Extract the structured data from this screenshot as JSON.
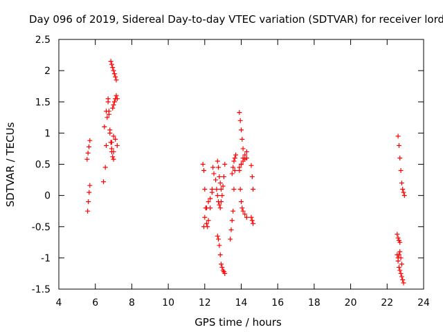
{
  "chart_data": {
    "type": "scatter",
    "title": "Day 096 of 2019, Sidereal Day-to-day VTEC variation (SDTVAR) for receiver lord",
    "xlabel": "GPS time / hours",
    "ylabel": "SDTVAR / TECUs",
    "xlim": [
      4,
      24
    ],
    "ylim": [
      -1.5,
      2.5
    ],
    "x_ticks": [
      4,
      6,
      8,
      10,
      12,
      14,
      16,
      18,
      20,
      22,
      24
    ],
    "x_tick_labels": [
      "4",
      "6",
      "8",
      "10",
      "12",
      "14",
      "16",
      "18",
      "20",
      "22",
      "24"
    ],
    "y_ticks": [
      -1.5,
      -1,
      -0.5,
      0,
      0.5,
      1,
      1.5,
      2,
      2.5
    ],
    "y_tick_labels": [
      "-1.5",
      "-1",
      "-0.5",
      "0",
      "0.5",
      "1",
      "1.5",
      "2",
      "2.5"
    ],
    "marker": "+",
    "grid": false,
    "color": "#ff0000",
    "series": [
      {
        "name": "SDTVAR",
        "tracks": [
          {
            "x": [
              5.55,
              5.6,
              5.65,
              5.7
            ],
            "y": [
              0.58,
              0.68,
              0.78,
              0.88
            ]
          },
          {
            "x": [
              5.58,
              5.62,
              5.66,
              5.7
            ],
            "y": [
              -0.25,
              -0.1,
              0.05,
              0.16
            ]
          },
          {
            "x": [
              6.45,
              6.55,
              6.6,
              6.65,
              6.7,
              6.75,
              6.8,
              6.85,
              6.9,
              6.95,
              7.0
            ],
            "y": [
              0.22,
              0.45,
              0.8,
              1.25,
              1.5,
              1.35,
              1.05,
              0.85,
              0.7,
              0.62,
              0.58
            ]
          },
          {
            "x": [
              6.5,
              6.6,
              6.7,
              6.75,
              6.8,
              6.85,
              6.9,
              7.0
            ],
            "y": [
              1.1,
              1.35,
              1.55,
              1.3,
              1.0,
              0.85,
              0.75,
              0.7
            ]
          },
          {
            "x": [
              6.85,
              6.9,
              6.95,
              7.0,
              7.05,
              7.1,
              7.15
            ],
            "y": [
              2.15,
              2.1,
              2.05,
              2.0,
              1.95,
              1.9,
              1.85
            ]
          },
          {
            "x": [
              6.95,
              7.0,
              7.05,
              7.1,
              7.15,
              7.2
            ],
            "y": [
              1.4,
              1.45,
              1.5,
              1.55,
              1.6,
              1.55
            ]
          },
          {
            "x": [
              6.9,
              7.0,
              7.1,
              7.2
            ],
            "y": [
              0.85,
              0.95,
              0.9,
              0.8
            ]
          },
          {
            "x": [
              11.9,
              11.95,
              12.0,
              12.05,
              12.1,
              12.15,
              12.2,
              12.3,
              12.4,
              12.45
            ],
            "y": [
              0.5,
              0.4,
              0.1,
              -0.2,
              -0.45,
              -0.5,
              -0.4,
              -0.2,
              0.1,
              0.45
            ]
          },
          {
            "x": [
              11.95,
              12.0,
              12.1,
              12.2,
              12.3,
              12.4,
              12.5
            ],
            "y": [
              -0.5,
              -0.35,
              -0.2,
              -0.1,
              -0.05,
              0.05,
              0.35
            ]
          },
          {
            "x": [
              12.6,
              12.65,
              12.7,
              12.75,
              12.8,
              12.85,
              12.9,
              12.95,
              13.0,
              13.05,
              13.1
            ],
            "y": [
              0.25,
              0.1,
              0.0,
              -0.1,
              -0.15,
              -0.2,
              -0.1,
              0.0,
              0.15,
              0.3,
              0.5
            ]
          },
          {
            "x": [
              12.7,
              12.75,
              12.8,
              12.85,
              12.9
            ],
            "y": [
              0.55,
              0.45,
              0.3,
              0.2,
              0.1
            ]
          },
          {
            "x": [
              12.7,
              12.75,
              12.8,
              12.85,
              12.9,
              12.95,
              13.0,
              13.05,
              13.1
            ],
            "y": [
              -0.65,
              -0.7,
              -0.8,
              -0.95,
              -1.1,
              -1.15,
              -1.2,
              -1.22,
              -1.25
            ]
          },
          {
            "x": [
              13.4,
              13.45,
              13.5,
              13.55,
              13.6,
              13.65
            ],
            "y": [
              -0.7,
              -0.55,
              -0.4,
              -0.25,
              0.1,
              0.4
            ]
          },
          {
            "x": [
              13.5,
              13.55,
              13.6,
              13.65,
              13.7
            ],
            "y": [
              0.35,
              0.45,
              0.55,
              0.6,
              0.65
            ]
          },
          {
            "x": [
              13.9,
              13.95,
              14.0,
              14.05,
              14.1
            ],
            "y": [
              1.33,
              1.2,
              1.05,
              0.9,
              0.75
            ]
          },
          {
            "x": [
              13.9,
              14.0,
              14.1,
              14.2,
              14.3
            ],
            "y": [
              0.4,
              0.5,
              0.6,
              0.65,
              0.7
            ]
          },
          {
            "x": [
              13.95,
              14.0,
              14.05,
              14.1,
              14.2,
              14.3
            ],
            "y": [
              0.1,
              -0.1,
              -0.2,
              -0.25,
              -0.3,
              -0.35
            ]
          },
          {
            "x": [
              13.9,
              14.0,
              14.1,
              14.2,
              14.3
            ],
            "y": [
              0.45,
              0.5,
              0.55,
              0.58,
              0.6
            ]
          },
          {
            "x": [
              14.55,
              14.6,
              14.65
            ],
            "y": [
              0.48,
              0.3,
              0.1
            ]
          },
          {
            "x": [
              14.55,
              14.6,
              14.65
            ],
            "y": [
              -0.35,
              -0.4,
              -0.45
            ]
          },
          {
            "x": [
              22.6,
              22.65,
              22.7,
              22.75,
              22.8,
              22.85,
              22.9,
              22.95
            ],
            "y": [
              0.95,
              0.8,
              0.6,
              0.4,
              0.2,
              0.1,
              0.05,
              0.0
            ]
          },
          {
            "x": [
              22.55,
              22.6,
              22.65,
              22.7
            ],
            "y": [
              -0.62,
              -0.68,
              -0.72,
              -0.75
            ]
          },
          {
            "x": [
              22.55,
              22.6,
              22.65,
              22.7,
              22.75,
              22.8,
              22.85,
              22.9
            ],
            "y": [
              -0.95,
              -1.05,
              -1.15,
              -1.2,
              -1.25,
              -1.3,
              -1.35,
              -1.4
            ]
          },
          {
            "x": [
              22.6,
              22.65,
              22.7,
              22.75,
              22.8
            ],
            "y": [
              -1.0,
              -0.95,
              -0.9,
              -1.0,
              -1.1
            ]
          }
        ]
      }
    ]
  }
}
